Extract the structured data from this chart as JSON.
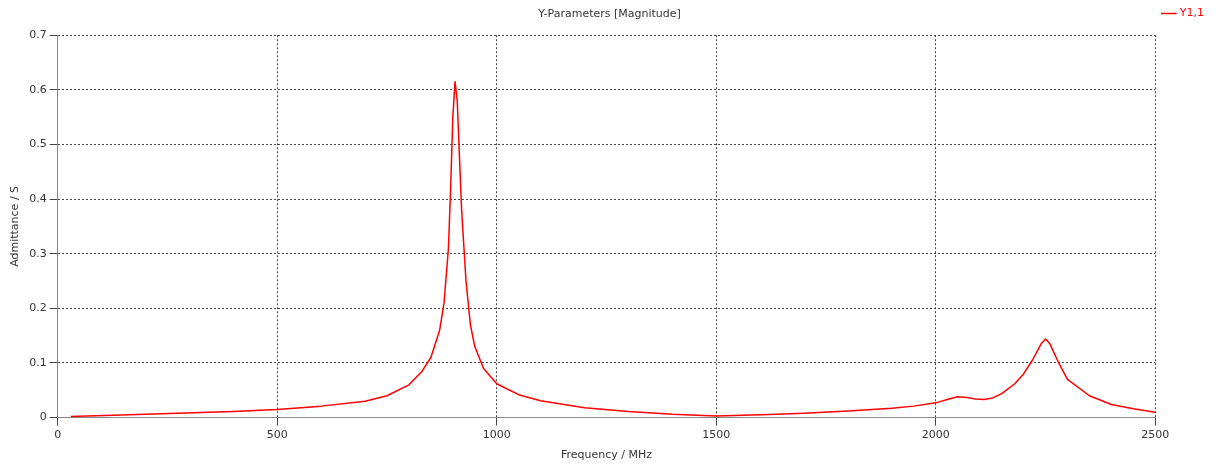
{
  "chart_data": {
    "type": "line",
    "title": "Y-Parameters [Magnitude]",
    "xlabel": "Frequency / MHz",
    "ylabel": "Admittance / S",
    "x": [
      30,
      200,
      400,
      500,
      600,
      700,
      750,
      800,
      830,
      850,
      870,
      880,
      890,
      895,
      900,
      905,
      910,
      915,
      920,
      930,
      940,
      950,
      970,
      1000,
      1050,
      1100,
      1200,
      1300,
      1400,
      1500,
      1600,
      1700,
      1800,
      1900,
      1950,
      2000,
      2030,
      2050,
      2070,
      2090,
      2110,
      2130,
      2150,
      2180,
      2200,
      2220,
      2240,
      2250,
      2260,
      2280,
      2300,
      2350,
      2400,
      2450,
      2500
    ],
    "series": [
      {
        "name": "Y1,1",
        "color": "#ff0000",
        "values": [
          0.002,
          0.006,
          0.011,
          0.015,
          0.021,
          0.03,
          0.04,
          0.06,
          0.085,
          0.11,
          0.16,
          0.21,
          0.31,
          0.42,
          0.55,
          0.615,
          0.58,
          0.48,
          0.38,
          0.25,
          0.17,
          0.13,
          0.09,
          0.062,
          0.042,
          0.031,
          0.018,
          0.011,
          0.006,
          0.003,
          0.005,
          0.008,
          0.012,
          0.017,
          0.021,
          0.027,
          0.034,
          0.038,
          0.037,
          0.034,
          0.033,
          0.036,
          0.044,
          0.062,
          0.08,
          0.105,
          0.135,
          0.144,
          0.135,
          0.1,
          0.07,
          0.04,
          0.024,
          0.016,
          0.01
        ]
      }
    ],
    "xlim": [
      0,
      2500
    ],
    "xticks": [
      0,
      500,
      1000,
      1500,
      2000,
      2500
    ],
    "ylim": [
      0,
      0.7
    ],
    "yticks": [
      0,
      0.1,
      0.2,
      0.3,
      0.4,
      0.5,
      0.6,
      0.7
    ],
    "grid": true,
    "legend": "top right",
    "marker": "none",
    "line_style": "solid"
  }
}
